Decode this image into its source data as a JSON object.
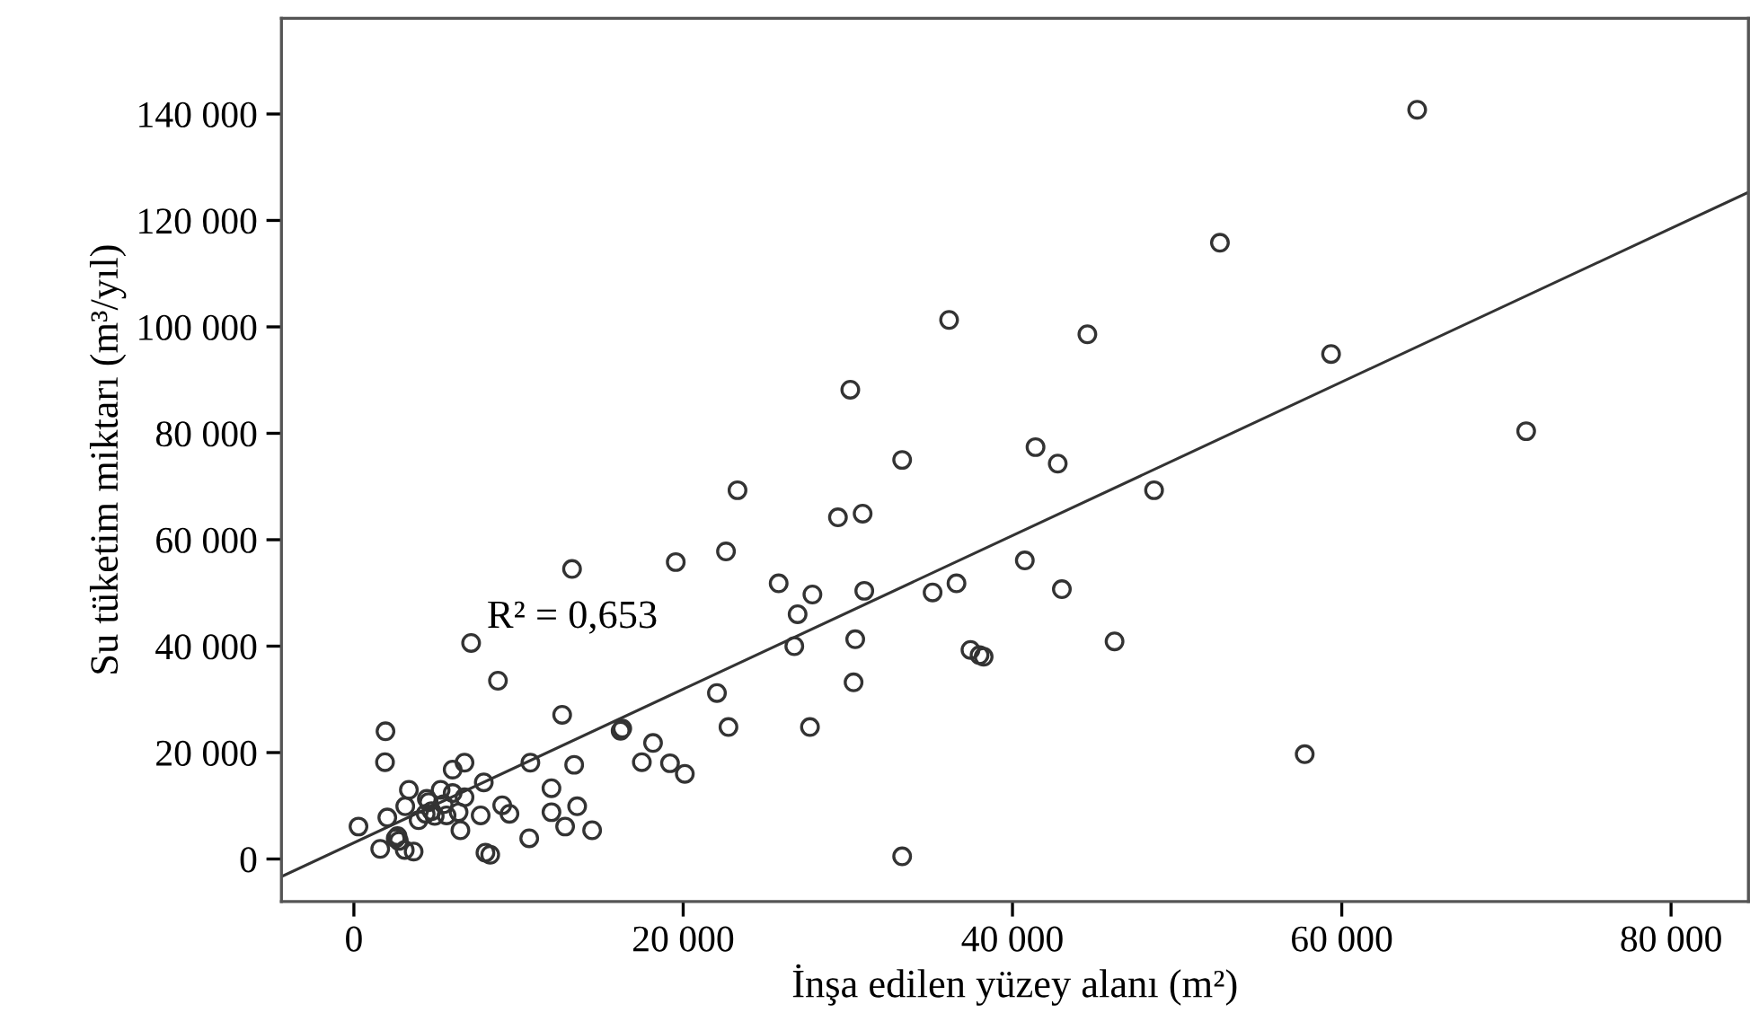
{
  "chart_data": {
    "type": "scatter",
    "xlabel": "İnşa edilen yüzey alanı (m²)",
    "ylabel": "Su tüketim miktarı (m³/yıl)",
    "annotations": [
      "R² = 0,653"
    ],
    "grid": false,
    "xlim": [
      -4400,
      84700
    ],
    "ylim": [
      -8000,
      158000
    ],
    "xticks": [
      0,
      {
        "value": 20000,
        "label": "20 000"
      },
      {
        "value": 40000,
        "label": "40 000"
      },
      {
        "value": 60000,
        "label": "60 000"
      },
      {
        "value": 80000,
        "label": "80 000"
      }
    ],
    "yticks": [
      0,
      {
        "value": 20000,
        "label": "20 000"
      },
      {
        "value": 40000,
        "label": "40 000"
      },
      {
        "value": 60000,
        "label": "60 000"
      },
      {
        "value": 80000,
        "label": "80 000"
      },
      {
        "value": 100000,
        "label": "100 000"
      },
      {
        "value": 120000,
        "label": "120 000"
      },
      {
        "value": 140000,
        "label": "140 000"
      }
    ],
    "series": [
      {
        "color": "#333333",
        "marker": "circle",
        "x": [
          64580,
          52600,
          36150,
          44550,
          30150,
          59350,
          71200,
          41400,
          42750,
          33300,
          23300,
          48600,
          29400,
          30900,
          13250,
          19550,
          22600,
          40750,
          25800,
          27850,
          31000,
          36600,
          35150,
          43000,
          46200,
          26950,
          30450,
          7120,
          8750,
          26750,
          37450,
          38000,
          38250,
          30350,
          22050,
          27700,
          22750,
          12650,
          16300,
          16200,
          57750,
          33300,
          1920,
          1890,
          18170,
          17490,
          19200,
          20100,
          13380,
          10720,
          12000,
          13560,
          12000,
          12830,
          14470,
          10650,
          7990,
          8280,
          9010,
          9450,
          7700,
          7890,
          6720,
          6000,
          280,
          2030,
          1600,
          2540,
          2730,
          2650,
          3090,
          3630,
          3340,
          3120,
          4430,
          4540,
          3930,
          5270,
          6000,
          5450,
          4910,
          5630,
          6360,
          6470,
          6720,
          4360,
          4720
        ],
        "values": [
          140800,
          115800,
          101300,
          98600,
          88200,
          94900,
          80400,
          77400,
          74300,
          75000,
          69300,
          69300,
          64200,
          64900,
          54500,
          55800,
          57800,
          56100,
          51800,
          49700,
          50400,
          51800,
          50100,
          50700,
          40900,
          46000,
          41300,
          40600,
          33500,
          40000,
          39300,
          38300,
          38000,
          33200,
          31200,
          24800,
          24800,
          27100,
          24500,
          24100,
          19700,
          500,
          24000,
          18200,
          21800,
          18200,
          18000,
          16000,
          17700,
          18100,
          13300,
          9900,
          8800,
          6100,
          5400,
          3900,
          1200,
          800,
          10100,
          8500,
          8200,
          14400,
          18100,
          16800,
          6100,
          7800,
          1900,
          3900,
          3400,
          4300,
          1700,
          1400,
          13000,
          9900,
          11300,
          10700,
          7300,
          13000,
          12400,
          10300,
          8100,
          8200,
          8800,
          5400,
          11600,
          8500,
          9000
        ]
      },
      {
        "type": "line",
        "color": "#333333",
        "marker": "none",
        "x": [
          -4400,
          84700
        ],
        "values": [
          -3300,
          125300
        ]
      }
    ]
  }
}
